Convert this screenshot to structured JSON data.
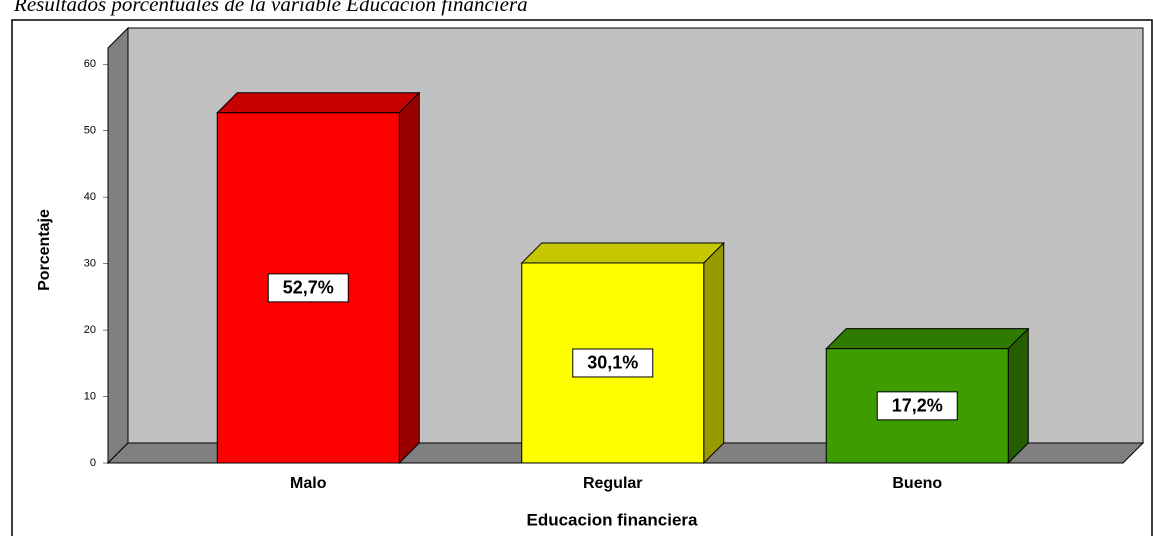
{
  "chart_data": {
    "type": "bar3d",
    "title": "Resultados porcentuales de la variable Educación financiera",
    "xlabel": "Educacion financiera",
    "ylabel": "Porcentaje",
    "categories": [
      "Malo",
      "Regular",
      "Bueno"
    ],
    "values": [
      52.7,
      30.1,
      17.2
    ],
    "value_labels": [
      "52,7%",
      "30,1%",
      "17,2%"
    ],
    "colors": [
      "#ff0000",
      "#ffff00",
      "#3c9c00"
    ],
    "ylim": [
      0,
      65
    ],
    "yticks": [
      0,
      10,
      20,
      30,
      40,
      50,
      60
    ],
    "grid": false
  }
}
